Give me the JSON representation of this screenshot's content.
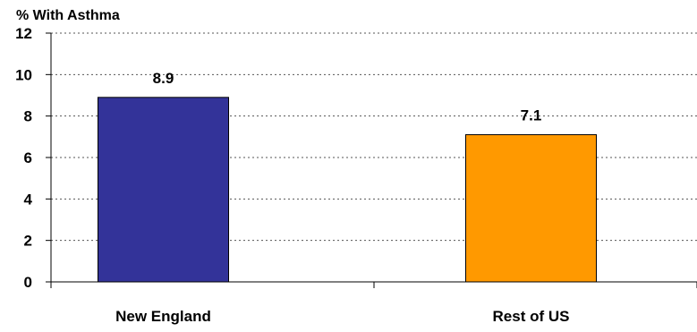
{
  "chart_data": {
    "type": "bar",
    "title": "",
    "ylabel": "% With Asthma",
    "xlabel": "",
    "categories": [
      "New England",
      "Rest of US"
    ],
    "values": [
      8.9,
      7.1
    ],
    "value_labels": [
      "8.9",
      "7.1"
    ],
    "bar_colors": [
      "#333399",
      "#FF9900"
    ],
    "ylim": [
      0,
      12
    ],
    "yticks": [
      0,
      2,
      4,
      6,
      8,
      10,
      12
    ],
    "grid": "horizontal dotted",
    "legend": "none"
  }
}
